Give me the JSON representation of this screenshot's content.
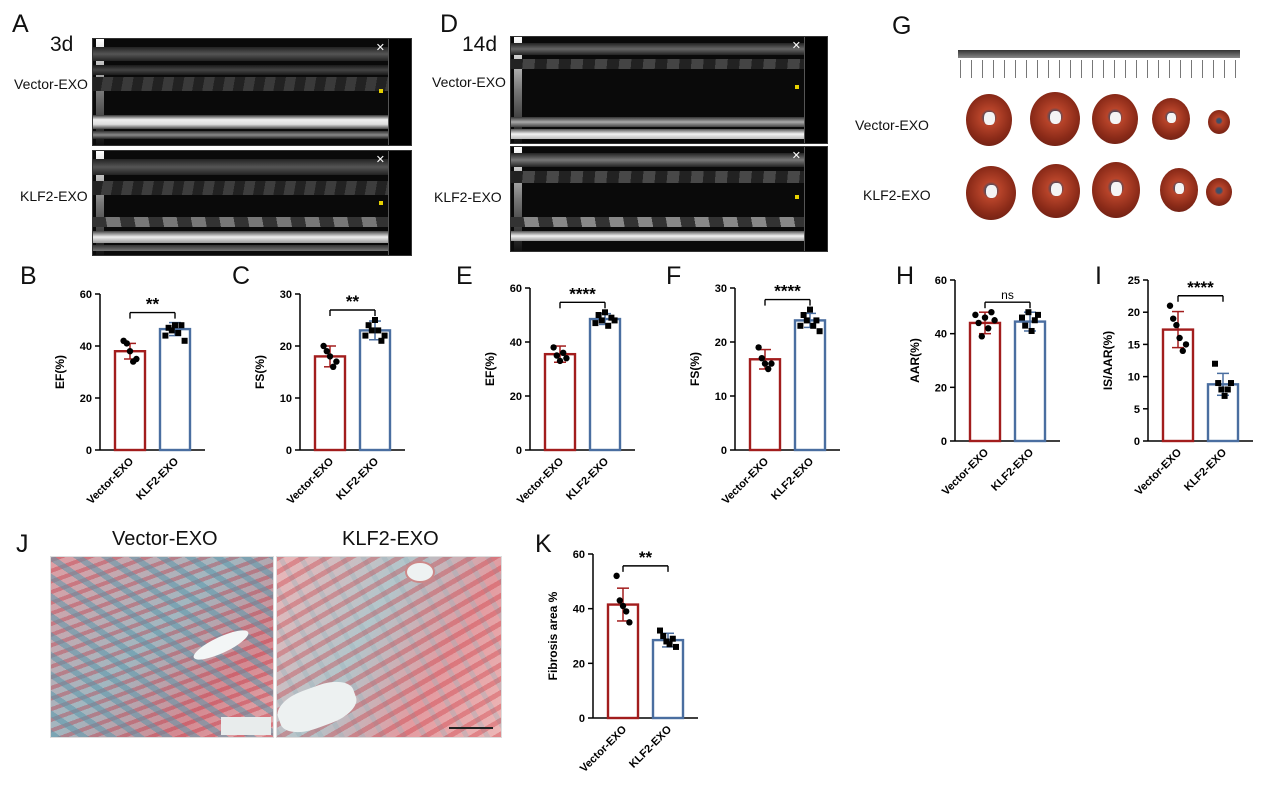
{
  "panel_labels": {
    "A": "A",
    "B": "B",
    "C": "C",
    "D": "D",
    "E": "E",
    "F": "F",
    "G": "G",
    "H": "H",
    "I": "I",
    "J": "J",
    "K": "K"
  },
  "echo": {
    "left_time": "3d",
    "right_time": "14d",
    "row1": "Vector-EXO",
    "row2": "KLF2-EXO"
  },
  "hearts": {
    "row1": "Vector-EXO",
    "row2": "KLF2-EXO"
  },
  "histology": {
    "left_title": "Vector-EXO",
    "right_title": "KLF2-EXO"
  },
  "colors": {
    "vector_bar": "#a21d1d",
    "klf2_bar": "#4a6ea0"
  },
  "chart_data": [
    {
      "id": "B",
      "type": "bar",
      "categories": [
        "Vector-EXO",
        "KLF2-EXO"
      ],
      "values": [
        38,
        46.5
      ],
      "errors": [
        3,
        2.5
      ],
      "points": [
        [
          42,
          41,
          38,
          34,
          35
        ],
        [
          44,
          47,
          46,
          48,
          45,
          48,
          42
        ]
      ],
      "ylabel": "EF(%)",
      "ylim": [
        0,
        60
      ],
      "ticks": [
        0,
        20,
        40,
        60
      ],
      "significance": "**"
    },
    {
      "id": "C",
      "type": "bar",
      "categories": [
        "Vector-EXO",
        "KLF2-EXO"
      ],
      "values": [
        18,
        23
      ],
      "errors": [
        2,
        1.8
      ],
      "points": [
        [
          20,
          19,
          18,
          16,
          17
        ],
        [
          22,
          24,
          23,
          25,
          23,
          21,
          22
        ]
      ],
      "ylabel": "FS(%)",
      "ylim": [
        0,
        30
      ],
      "ticks": [
        0,
        10,
        20,
        30
      ],
      "significance": "**"
    },
    {
      "id": "E",
      "type": "bar",
      "categories": [
        "Vector-EXO",
        "KLF2-EXO"
      ],
      "values": [
        35.5,
        48.5
      ],
      "errors": [
        3,
        2
      ],
      "points": [
        [
          38,
          35,
          33,
          36,
          34
        ],
        [
          47,
          50,
          48,
          51,
          46,
          49,
          48
        ]
      ],
      "ylabel": "EF(%)",
      "ylim": [
        0,
        60
      ],
      "ticks": [
        0,
        20,
        40,
        60
      ],
      "significance": "****"
    },
    {
      "id": "F",
      "type": "bar",
      "categories": [
        "Vector-EXO",
        "KLF2-EXO"
      ],
      "values": [
        16.8,
        24
      ],
      "errors": [
        1.8,
        1.3
      ],
      "points": [
        [
          19,
          17,
          16,
          15,
          16
        ],
        [
          23,
          25,
          24,
          26,
          23,
          24,
          22
        ]
      ],
      "ylabel": "FS(%)",
      "ylim": [
        0,
        30
      ],
      "ticks": [
        0,
        10,
        20,
        30
      ],
      "significance": "****"
    },
    {
      "id": "H",
      "type": "bar",
      "categories": [
        "Vector-EXO",
        "KLF2-EXO"
      ],
      "values": [
        44,
        44.5
      ],
      "errors": [
        4,
        3.5
      ],
      "points": [
        [
          47,
          44,
          39,
          46,
          42,
          48,
          45
        ],
        [
          46,
          43,
          48,
          41,
          45,
          47
        ]
      ],
      "ylabel": "AAR(%)",
      "ylim": [
        0,
        60
      ],
      "ticks": [
        0,
        20,
        40,
        60
      ],
      "significance": "ns"
    },
    {
      "id": "I",
      "type": "bar",
      "categories": [
        "Vector-EXO",
        "KLF2-EXO"
      ],
      "values": [
        17.3,
        8.8
      ],
      "errors": [
        2.8,
        1.7
      ],
      "points": [
        [
          21,
          19,
          18,
          16,
          14,
          15
        ],
        [
          12,
          9,
          8,
          7,
          8,
          9
        ]
      ],
      "ylabel": "IS/AAR(%)",
      "ylim": [
        0,
        25
      ],
      "ticks": [
        0,
        5,
        10,
        15,
        20,
        25
      ],
      "significance": "****"
    },
    {
      "id": "K",
      "type": "bar",
      "categories": [
        "Vector-EXO",
        "KLF2-EXO"
      ],
      "values": [
        41.5,
        28.5
      ],
      "errors": [
        6,
        2.5
      ],
      "points": [
        [
          52,
          43,
          41,
          39,
          35
        ],
        [
          32,
          30,
          28,
          27,
          29,
          26
        ]
      ],
      "ylabel": "Fibrosis area %",
      "ylim": [
        0,
        60
      ],
      "ticks": [
        0,
        20,
        40,
        60
      ],
      "significance": "**"
    }
  ]
}
